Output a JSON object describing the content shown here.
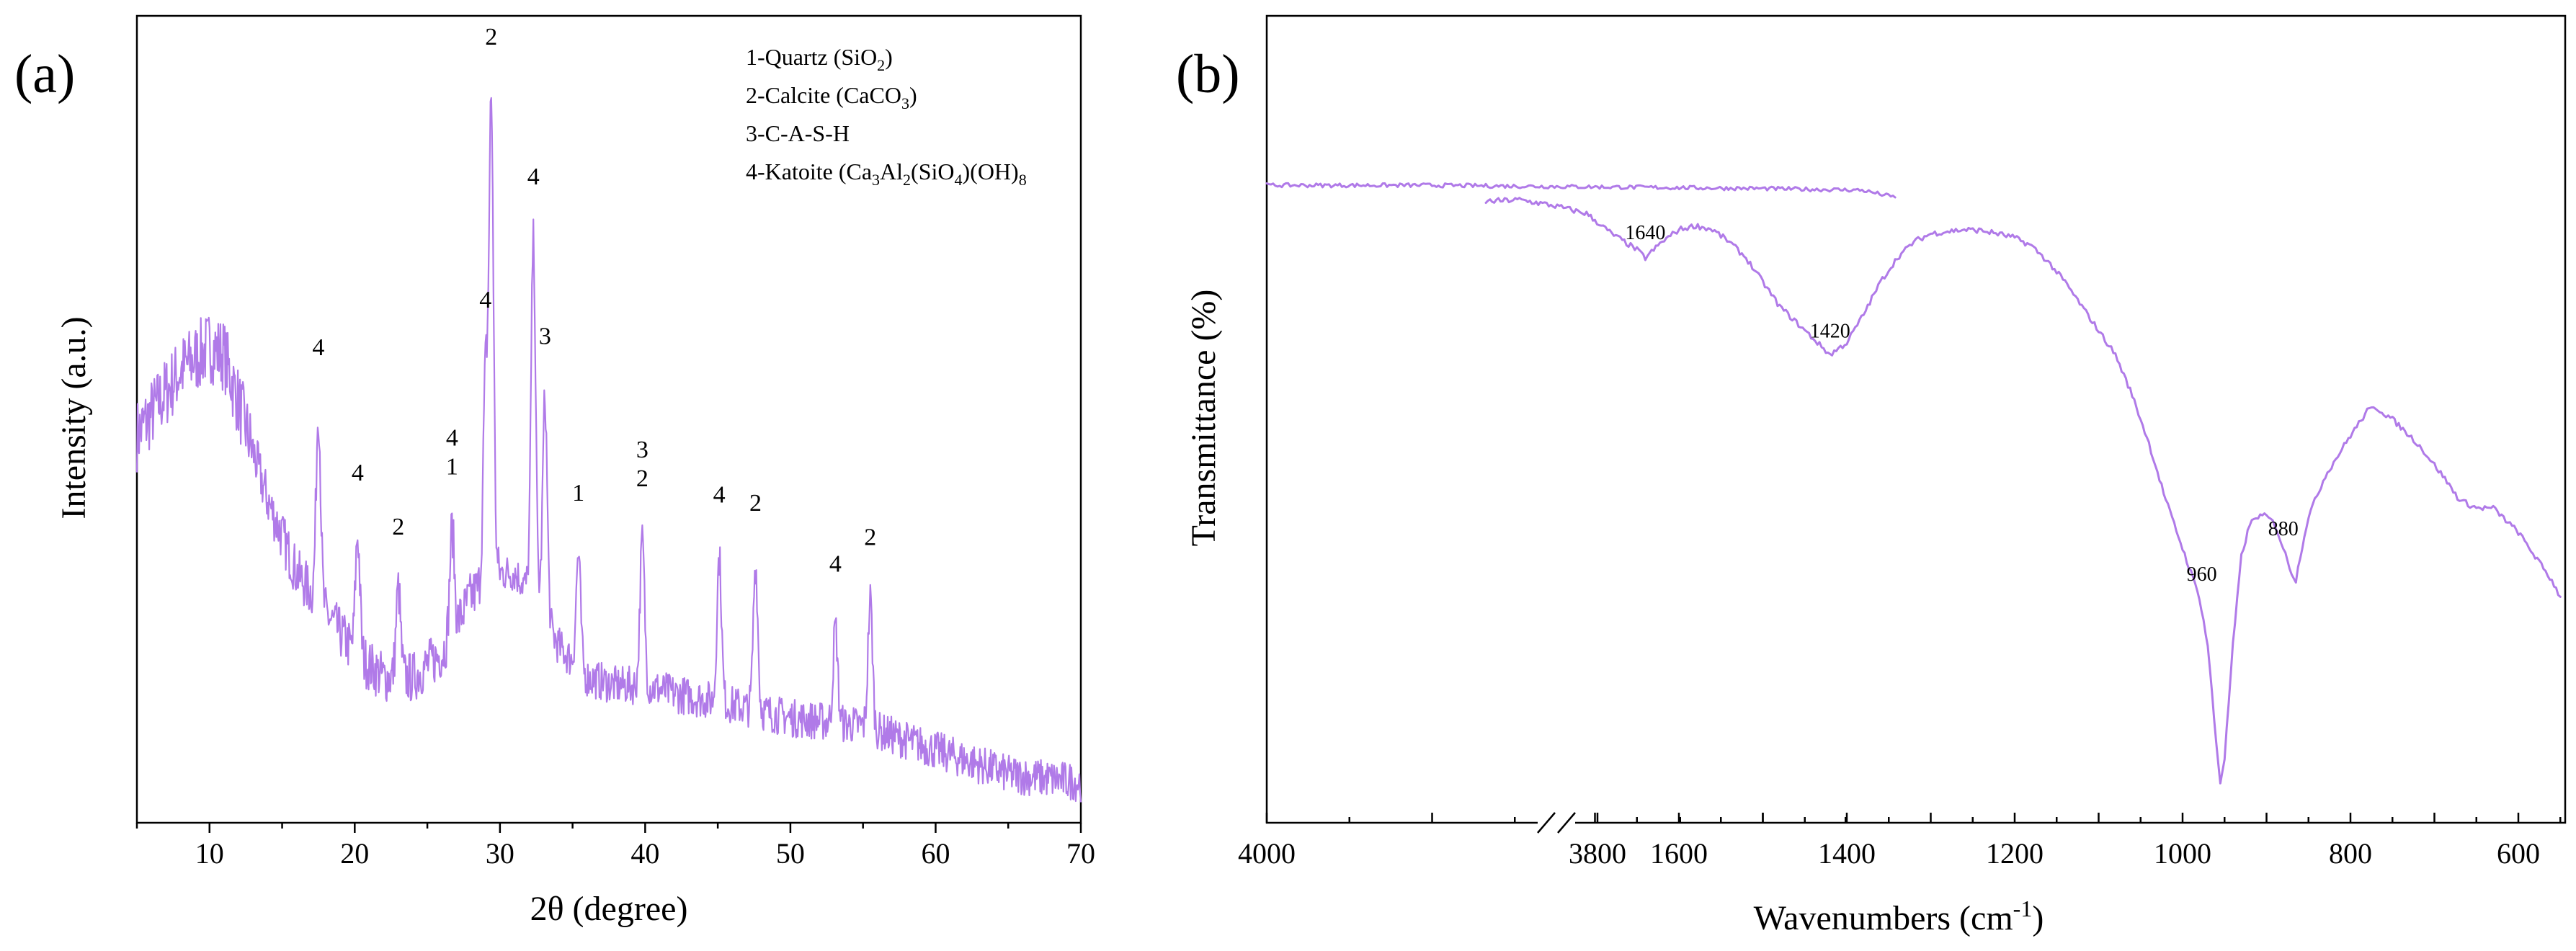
{
  "chart_data": [
    {
      "panel": "(a)",
      "type": "line",
      "xlabel": "2θ (degree)",
      "ylabel": "Intensity (a.u.)",
      "xlim": [
        5,
        70
      ],
      "ylim": [
        0,
        100
      ],
      "xticks": [
        10,
        20,
        30,
        40,
        50,
        60,
        70
      ],
      "color": "#b07ae8",
      "legend": [
        {
          "num": "1-Quartz (SiO",
          "sub": "2",
          "rest": ")"
        },
        {
          "num": "2-Calcite (CaCO",
          "sub": "3",
          "rest": ")"
        },
        {
          "num": "3-C-A-S-H",
          "sub": "",
          "rest": ""
        },
        {
          "num": "4-Katoite (Ca",
          "sub": "3",
          "mid": "Al",
          "sub2": "2",
          "mid2": "(SiO",
          "sub3": "4",
          "mid3": ")(OH)",
          "sub4": "8"
        }
      ],
      "baseline": [
        [
          5,
          48
        ],
        [
          8,
          56
        ],
        [
          10,
          59
        ],
        [
          11,
          58
        ],
        [
          12,
          52
        ],
        [
          14,
          40
        ],
        [
          16,
          31
        ],
        [
          18,
          26
        ],
        [
          20,
          21
        ],
        [
          22,
          18
        ],
        [
          24,
          18
        ],
        [
          26,
          21
        ],
        [
          28,
          28
        ],
        [
          29.5,
          31
        ],
        [
          31,
          31
        ],
        [
          32.5,
          28
        ],
        [
          34,
          22
        ],
        [
          36,
          18
        ],
        [
          38,
          17
        ],
        [
          40,
          17
        ],
        [
          42,
          16
        ],
        [
          45,
          15
        ],
        [
          50,
          13
        ],
        [
          55,
          12
        ],
        [
          60,
          9
        ],
        [
          65,
          6
        ],
        [
          70,
          5
        ]
      ],
      "peaks": [
        {
          "x": 17.5,
          "h": 24,
          "label": "4"
        },
        {
          "x": 20.2,
          "h": 15,
          "label": "4"
        },
        {
          "x": 23.0,
          "h": 11,
          "label": "2"
        },
        {
          "x": 26.7,
          "h": 13,
          "label": "1"
        },
        {
          "x": 29.0,
          "h": 25,
          "label": "4"
        },
        {
          "x": 29.4,
          "h": 58,
          "label": "2"
        },
        {
          "x": 32.3,
          "h": 44,
          "label": "4"
        },
        {
          "x": 33.1,
          "h": 27,
          "label": "3"
        },
        {
          "x": 35.4,
          "h": 14,
          "label": "1"
        },
        {
          "x": 39.8,
          "h": 18,
          "label": "2"
        },
        {
          "x": 45.1,
          "h": 18,
          "label": "4"
        },
        {
          "x": 47.6,
          "h": 18,
          "label": "2"
        },
        {
          "x": 53.1,
          "h": 12,
          "label": "4"
        },
        {
          "x": 55.5,
          "h": 16,
          "label": "2"
        }
      ],
      "annotations": [
        {
          "x": 17.5,
          "text": "4"
        },
        {
          "x": 20.2,
          "text": "4"
        },
        {
          "x": 23.0,
          "text": "2"
        },
        {
          "x": 26.7,
          "text": "4",
          "stack": "1"
        },
        {
          "x": 29.0,
          "text": "4"
        },
        {
          "x": 29.4,
          "text": "2"
        },
        {
          "x": 32.3,
          "text": "4"
        },
        {
          "x": 33.1,
          "text": "3"
        },
        {
          "x": 35.4,
          "text": "1"
        },
        {
          "x": 39.8,
          "text": "3",
          "stack": "2"
        },
        {
          "x": 45.1,
          "text": "4"
        },
        {
          "x": 47.6,
          "text": "2"
        },
        {
          "x": 53.1,
          "text": "4"
        },
        {
          "x": 55.5,
          "text": "2"
        }
      ]
    },
    {
      "panel": "(b)",
      "type": "line",
      "xlabel_main": "Wavenumbers (cm",
      "xlabel_sup": "-1",
      "xlabel_end": ")",
      "ylabel": "Transmittance (%)",
      "color": "#b07ae8",
      "axis_break": true,
      "xticks_left": [
        4000,
        3800
      ],
      "xticks_right": [
        1600,
        1400,
        1200,
        1000,
        800,
        600
      ],
      "ylim": [
        0,
        100
      ],
      "segment_left": {
        "xlim": [
          4000,
          3600
        ],
        "points": [
          [
            4000,
            79
          ],
          [
            3900,
            79
          ],
          [
            3800,
            78.8
          ],
          [
            3700,
            78.6
          ],
          [
            3640,
            78.4
          ],
          [
            3620,
            77.5
          ]
        ]
      },
      "segment_right": {
        "xlim": [
          1830,
          550
        ],
        "points": [
          [
            1830,
            77
          ],
          [
            1790,
            77.2
          ],
          [
            1750,
            76.5
          ],
          [
            1710,
            75.5
          ],
          [
            1680,
            73
          ],
          [
            1650,
            71
          ],
          [
            1640,
            70
          ],
          [
            1620,
            72
          ],
          [
            1600,
            73.5
          ],
          [
            1580,
            74
          ],
          [
            1560,
            73.5
          ],
          [
            1540,
            72
          ],
          [
            1520,
            70
          ],
          [
            1500,
            67
          ],
          [
            1480,
            64
          ],
          [
            1460,
            62
          ],
          [
            1440,
            60
          ],
          [
            1420,
            58
          ],
          [
            1400,
            59.5
          ],
          [
            1380,
            63
          ],
          [
            1360,
            67
          ],
          [
            1340,
            70
          ],
          [
            1320,
            72
          ],
          [
            1300,
            73
          ],
          [
            1280,
            73.3
          ],
          [
            1260,
            73.5
          ],
          [
            1240,
            73.4
          ],
          [
            1220,
            73
          ],
          [
            1200,
            72.5
          ],
          [
            1180,
            71.5
          ],
          [
            1160,
            69.5
          ],
          [
            1140,
            67
          ],
          [
            1120,
            64
          ],
          [
            1100,
            61
          ],
          [
            1080,
            58
          ],
          [
            1060,
            53
          ],
          [
            1040,
            47
          ],
          [
            1020,
            40
          ],
          [
            1000,
            34
          ],
          [
            980,
            28
          ],
          [
            970,
            22
          ],
          [
            960,
            10
          ],
          [
            955,
            5
          ],
          [
            950,
            8
          ],
          [
            940,
            22
          ],
          [
            930,
            33
          ],
          [
            920,
            37
          ],
          [
            910,
            38
          ],
          [
            900,
            38
          ],
          [
            890,
            37
          ],
          [
            880,
            34
          ],
          [
            870,
            31
          ],
          [
            865,
            30
          ],
          [
            860,
            33
          ],
          [
            850,
            38
          ],
          [
            830,
            43
          ],
          [
            800,
            48
          ],
          [
            780,
            51
          ],
          [
            770,
            51.5
          ],
          [
            750,
            50
          ],
          [
            720,
            47
          ],
          [
            690,
            43
          ],
          [
            670,
            40
          ],
          [
            650,
            39
          ],
          [
            630,
            39
          ],
          [
            600,
            36
          ],
          [
            580,
            33
          ],
          [
            560,
            30
          ],
          [
            550,
            28
          ]
        ]
      },
      "annotations": [
        {
          "x": 1640,
          "text": "1640"
        },
        {
          "x": 1420,
          "text": "1420"
        },
        {
          "x": 960,
          "text": "960"
        },
        {
          "x": 880,
          "text": "880"
        }
      ]
    }
  ]
}
